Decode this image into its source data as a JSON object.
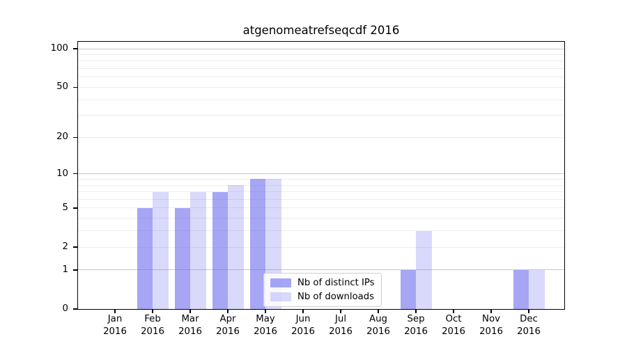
{
  "chart_data": {
    "type": "bar",
    "title": "atgenomeatrefseqcdf 2016",
    "categories": [
      "Jan",
      "Feb",
      "Mar",
      "Apr",
      "May",
      "Jun",
      "Jul",
      "Aug",
      "Sep",
      "Oct",
      "Nov",
      "Dec"
    ],
    "year_label": "2016",
    "series": [
      {
        "name": "Nb of distinct IPs",
        "color": "rgba(102,102,238,0.58)",
        "values": [
          0,
          5,
          5,
          7,
          9,
          0,
          0,
          0,
          1,
          0,
          0,
          1
        ]
      },
      {
        "name": "Nb of downloads",
        "color": "rgba(102,102,238,0.25)",
        "values": [
          0,
          7,
          7,
          8,
          9,
          0,
          0,
          0,
          3,
          0,
          0,
          1
        ]
      }
    ],
    "yscale": "log10(value+1)",
    "ylim": [
      0,
      113.4
    ],
    "yticks": [
      0,
      1,
      2,
      5,
      10,
      20,
      50,
      100
    ],
    "grid_major": [
      1,
      10,
      100
    ],
    "grid_minor": [
      2,
      3,
      4,
      5,
      6,
      7,
      8,
      9,
      20,
      30,
      40,
      50,
      60,
      70,
      80,
      90
    ],
    "grid_on": true,
    "legend_position": "lower center"
  },
  "colors": {
    "axis": "#000000",
    "grid_major": "#c8c8c8",
    "grid_minor": "#ededed",
    "bar_base": "#6666ee",
    "legend_border": "#cfcfcf",
    "background": "#ffffff"
  }
}
